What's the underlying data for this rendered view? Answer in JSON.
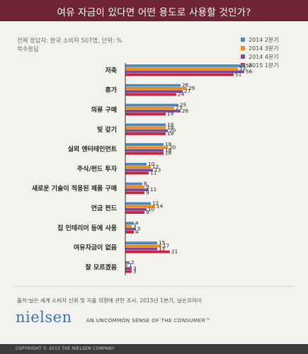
{
  "chart_data": {
    "type": "bar",
    "orientation": "horizontal",
    "title": "여유 자금이 있다면 어떤 용도로 사용할 것인가?",
    "note": "전체 응답자: 한국 소비자 507명, 단위: %",
    "note2": "복수응답",
    "categories": [
      "저축",
      "휴가",
      "의류 구매",
      "빚 갚기",
      "실외 엔터테인먼트",
      "주식/펀드 투자",
      "새로운 기술이 적용된 제품 구매",
      "연금 펀드",
      "집 인테리어 등에 사용",
      "여유자금이 없음",
      "잘 모르겠음"
    ],
    "series": [
      {
        "name": "2014 2분기",
        "color": "#4a8ab8",
        "values": [
          56,
          26,
          25,
          19,
          18,
          10,
          8,
          12,
          4,
          15,
          2
        ]
      },
      {
        "name": "2014 3분기",
        "color": "#f08a1c",
        "values": [
          53,
          29,
          23,
          19,
          20,
          12,
          9,
          14,
          3,
          17,
          1
        ]
      },
      {
        "name": "2014 4분기",
        "color": "#7b4a9b",
        "values": [
          56,
          27,
          26,
          20,
          18,
          13,
          11,
          10,
          5,
          15,
          3
        ]
      },
      {
        "name": "2015 1분기",
        "color": "#c8253a",
        "values": [
          51,
          24,
          19,
          19,
          18,
          11,
          9,
          9,
          4,
          21,
          3
        ]
      }
    ],
    "xlim": [
      0,
      56
    ],
    "data_labels": true,
    "legend_position": "top-right",
    "source": "출처:닐슨 세계 소비자 신뢰 및 지출 의향에 관한 조사, 2015년 1분기, 닐슨코리아"
  },
  "branding": {
    "logo": "nielsen",
    "tagline": "AN UNCOMMON SENSE OF THE CONSUMER™",
    "copyright": "COPYRIGHT © 2015 THE NIELSEN COMPANY"
  }
}
